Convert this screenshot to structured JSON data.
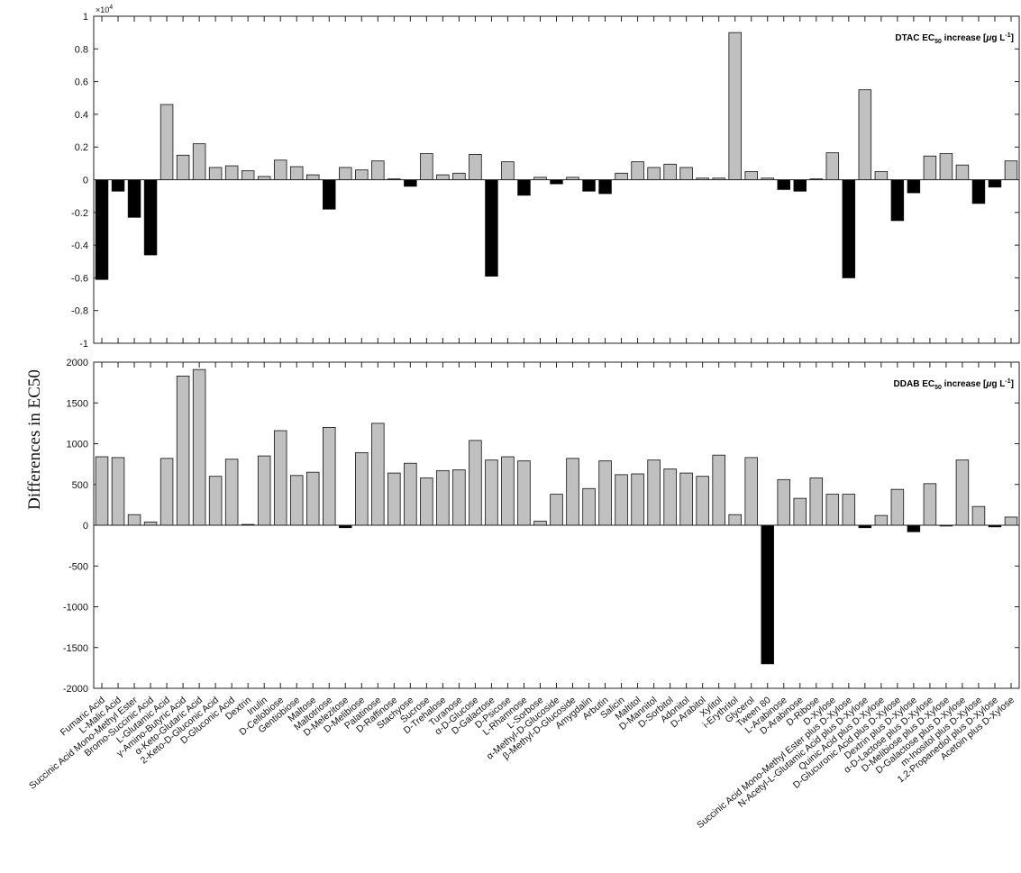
{
  "chart_data": {
    "ylabel": "Differences in EC50",
    "categories": [
      "Fumaric Acid",
      "L-Malic Acid",
      "Succinic Acid Mono-Methyl Ester",
      "Bromo-Succinic Acid",
      "L-Glutamic Acid",
      "γ-Amino-Butyric Acid",
      "α-Keto-Glutaric Acid",
      "2-Keto-D-Gluconic Acid",
      "D-Gluconic Acid",
      "Dextrin",
      "Inulin",
      "D-Cellobiose",
      "Gentiobiose",
      "Maltose",
      "Maltotriose",
      "D-Melezitose",
      "D-Melibiose",
      "Palatinose",
      "D-Raffinose",
      "Stachyose",
      "Sucrose",
      "D-Trehalose",
      "Turanose",
      "α-D-Glucose",
      "D-Galactose",
      "D-Psicose",
      "L-Rhamnose",
      "L-Sorbose",
      "α-Methyl-D-Glucoside",
      "β-Methyl-D-Glucoside",
      "Amygdalin",
      "Arbutin",
      "Salicin",
      "Maltitol",
      "D-Mannitol",
      "D-Sorbitol",
      "Adonitol",
      "D-Arabitol",
      "Xylitol",
      "i-Erythritol",
      "Glycerol",
      "Tween 80",
      "L-Arabinose",
      "D-Arabinose",
      "D-Ribose",
      "D-Xylose",
      "Succinic Acid Mono-Methyl Ester plus D-Xylose",
      "N-Acetyl-L-Glutamic Acid plus D-Xylose",
      "Quinic Acid plus D-Xylose",
      "D-Glucuronic Acid plus D-Xylose",
      "Dextrin plus D-Xylose",
      "α-D-Lactose plus D-Xylose",
      "D-Melibiose plus D-Xylose",
      "D-Galactose plus D-Xylose",
      "m-Inositol plus D-Xylose",
      "1,2-Propanediol plus D-Xylose",
      "Acetoin plus D-Xylose"
    ],
    "panels": [
      {
        "type": "bar",
        "title": "DTAC EC50 increase [μg L-1]",
        "title_parts": {
          "pre": "DTAC EC",
          "sub": "50",
          "mid": " increase [",
          "mu": "μ",
          "g": "g L",
          "sup": "-1",
          "post": "]"
        },
        "exponent_label": "×10",
        "exponent_power": "4",
        "ylim": [
          -10000,
          10000
        ],
        "ytick_values": [
          -10000,
          -8000,
          -6000,
          -4000,
          -2000,
          0,
          2000,
          4000,
          6000,
          8000,
          10000
        ],
        "ytick_labels": [
          "-1",
          "-0.8",
          "-0.6",
          "-0.4",
          "-0.2",
          "0",
          "0.2",
          "0.4",
          "0.6",
          "0.8",
          "1"
        ],
        "values": [
          -6100,
          -700,
          -2300,
          -4600,
          4600,
          1500,
          2200,
          750,
          850,
          550,
          200,
          1200,
          800,
          300,
          -1800,
          750,
          600,
          1150,
          50,
          -400,
          1600,
          300,
          400,
          1550,
          -5900,
          1100,
          -950,
          150,
          -250,
          150,
          -700,
          -850,
          400,
          1100,
          750,
          950,
          750,
          100,
          100,
          9000,
          500,
          100,
          -600,
          -700,
          50,
          1650,
          -6000,
          5500,
          500,
          -2500,
          -800,
          1450,
          1600,
          900,
          -1450,
          -450,
          1150
        ]
      },
      {
        "type": "bar",
        "title": "DDAB EC50 increase [μg L-1]",
        "title_parts": {
          "pre": "DDAB EC",
          "sub": "50",
          "mid": " increase [",
          "mu": "μ",
          "g": "g L",
          "sup": "-1",
          "post": "]"
        },
        "ylim": [
          -2000,
          2000
        ],
        "ytick_values": [
          -2000,
          -1500,
          -1000,
          -500,
          0,
          500,
          1000,
          1500,
          2000
        ],
        "ytick_labels": [
          "-2000",
          "-1500",
          "-1000",
          "-500",
          "0",
          "500",
          "1000",
          "1500",
          "2000"
        ],
        "values": [
          840,
          830,
          130,
          40,
          820,
          1830,
          1910,
          600,
          810,
          10,
          850,
          1160,
          610,
          650,
          1200,
          -30,
          890,
          1250,
          640,
          760,
          580,
          670,
          680,
          1040,
          800,
          840,
          790,
          50,
          380,
          820,
          450,
          790,
          620,
          630,
          800,
          690,
          640,
          600,
          860,
          130,
          830,
          -1700,
          560,
          330,
          580,
          380,
          380,
          -30,
          120,
          440,
          -80,
          510,
          -10,
          800,
          230,
          -20,
          100
        ]
      }
    ],
    "positive_color": "#c0c0c0",
    "negative_color": "#000000"
  }
}
